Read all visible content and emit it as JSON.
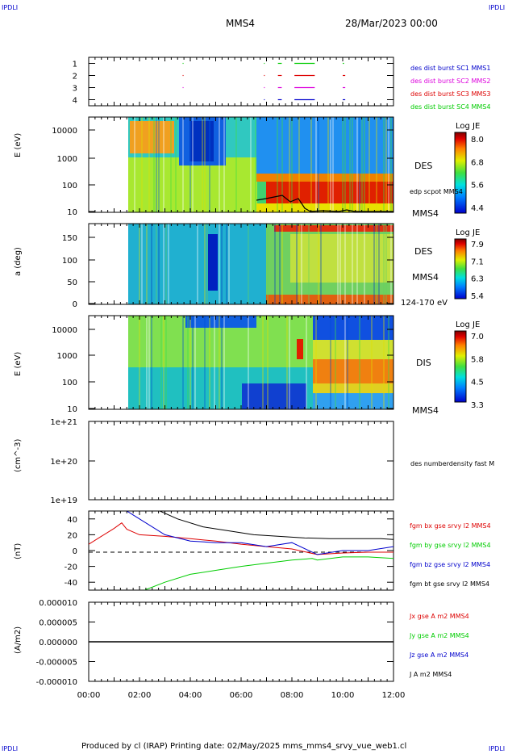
{
  "corners": {
    "left": "IPDLI",
    "right": "IPDLI"
  },
  "header": {
    "spacecraft": "MMS4",
    "date": "28/Mar/2023 00:00"
  },
  "footer": {
    "text": "Produced by cl (IRAP)   Printing date: 02/May/2025   mms_mms4_srvy_vue_web1.cl"
  },
  "colors": {
    "red": "#dd0000",
    "magenta": "#dd00dd",
    "blue": "#0000cc",
    "green": "#00cc00",
    "black": "#000000"
  },
  "chart_data": [
    {
      "type": "scatter",
      "id": "burst",
      "yticks": [
        "1",
        "2",
        "3",
        "4"
      ],
      "ylim": [
        0.5,
        4.5
      ],
      "legend": [
        {
          "label": "des dist burst SC1 MMS1",
          "color": "#0000cc"
        },
        {
          "label": "des dist burst SC2 MMS2",
          "color": "#dd00dd"
        },
        {
          "label": "des dist burst SC3 MMS3",
          "color": "#dd0000"
        },
        {
          "label": "des dist burst SC4 MMS4",
          "color": "#00cc00"
        }
      ],
      "segments": [
        {
          "sc": 4,
          "x": [
            3.7,
            3.72
          ]
        },
        {
          "sc": 4,
          "x": [
            6.9,
            6.92
          ]
        },
        {
          "sc": 4,
          "x": [
            7.45,
            7.6
          ]
        },
        {
          "sc": 4,
          "x": [
            8.1,
            8.9
          ]
        },
        {
          "sc": 4,
          "x": [
            10.0,
            10.05
          ]
        },
        {
          "sc": 3,
          "x": [
            3.7,
            3.72
          ]
        },
        {
          "sc": 3,
          "x": [
            6.9,
            6.92
          ]
        },
        {
          "sc": 3,
          "x": [
            7.45,
            7.6
          ]
        },
        {
          "sc": 3,
          "x": [
            8.1,
            8.9
          ]
        },
        {
          "sc": 3,
          "x": [
            10.0,
            10.1
          ]
        },
        {
          "sc": 2,
          "x": [
            3.7,
            3.72
          ]
        },
        {
          "sc": 2,
          "x": [
            6.9,
            6.92
          ]
        },
        {
          "sc": 2,
          "x": [
            7.45,
            7.6
          ]
        },
        {
          "sc": 2,
          "x": [
            8.1,
            8.9
          ]
        },
        {
          "sc": 2,
          "x": [
            10.0,
            10.1
          ]
        },
        {
          "sc": 1,
          "x": [
            6.9,
            6.92
          ]
        },
        {
          "sc": 1,
          "x": [
            7.45,
            7.6
          ]
        },
        {
          "sc": 1,
          "x": [
            8.1,
            8.9
          ]
        },
        {
          "sc": 1,
          "x": [
            10.0,
            10.1
          ]
        }
      ]
    },
    {
      "type": "heatmap",
      "id": "des_energy",
      "ylabel": "E (eV)",
      "yticks": [
        "10000",
        "1000",
        "100",
        "10"
      ],
      "label": "DES",
      "sc_label": "MMS4",
      "overlay_label": "edp scpot MMS4",
      "colorbar": {
        "title": "Log JE",
        "ticks": [
          "8.0",
          "6.8",
          "5.6",
          "4.4"
        ]
      }
    },
    {
      "type": "heatmap",
      "id": "des_pitch",
      "ylabel": "a (deg)",
      "yticks": [
        "150",
        "100",
        "50",
        "0"
      ],
      "label": "DES",
      "sc_label": "MMS4",
      "energy_label": "124-170 eV",
      "colorbar": {
        "title": "Log JE",
        "ticks": [
          "7.9",
          "7.1",
          "6.3",
          "5.4"
        ]
      }
    },
    {
      "type": "heatmap",
      "id": "dis_energy",
      "ylabel": "E (eV)",
      "yticks": [
        "10000",
        "1000",
        "100",
        "10"
      ],
      "label": "DIS",
      "sc_label": "MMS4",
      "colorbar": {
        "title": "Log JE",
        "ticks": [
          "7.0",
          "5.8",
          "4.5",
          "3.3"
        ]
      }
    },
    {
      "type": "line",
      "id": "density",
      "ylabel": "(cm^-3)",
      "yticks": [
        "1e+21",
        "1e+20",
        "1e+19"
      ],
      "legend": [
        {
          "label": "des numberdensity fast M",
          "color": "#000000"
        }
      ]
    },
    {
      "type": "line",
      "id": "fgm",
      "ylabel": "(nT)",
      "yticks": [
        "40",
        "20",
        "0",
        "-20",
        "-40"
      ],
      "ylim": [
        -50,
        50
      ],
      "legend": [
        {
          "label": "fgm bx gse srvy l2 MMS4",
          "color": "#dd0000"
        },
        {
          "label": "fgm by gse srvy l2 MMS4",
          "color": "#00cc00"
        },
        {
          "label": "fgm bz gse srvy l2 MMS4",
          "color": "#0000cc"
        },
        {
          "label": "fgm bt gse srvy l2 MMS4",
          "color": "#000000"
        }
      ],
      "series": [
        {
          "name": "fgm bx gse srvy l2 MMS4",
          "x": [
            0,
            0.5,
            1.0,
            1.3,
            1.5,
            2.0,
            3.0,
            4.0,
            5.0,
            6.0,
            7.0,
            8.0,
            9.0,
            10.0,
            11.0,
            12.0
          ],
          "values": [
            8,
            18,
            28,
            35,
            27,
            20,
            18,
            15,
            12,
            8,
            5,
            2,
            -5,
            -3,
            -2,
            -2
          ]
        },
        {
          "name": "fgm by gse srvy l2 MMS4",
          "x": [
            2.2,
            3.0,
            4.0,
            5.0,
            6.0,
            7.0,
            8.0,
            8.8,
            9.0,
            10.0,
            11.0,
            12.0
          ],
          "values": [
            -50,
            -40,
            -30,
            -25,
            -20,
            -16,
            -12,
            -10,
            -12,
            -8,
            -8,
            -10
          ]
        },
        {
          "name": "fgm bz gse srvy l2 MMS4",
          "x": [
            1.5,
            2.0,
            3.0,
            4.0,
            5.0,
            6.0,
            7.0,
            8.0,
            9.0,
            10.0,
            11.0,
            12.0
          ],
          "values": [
            50,
            40,
            20,
            12,
            10,
            10,
            5,
            10,
            -5,
            0,
            0,
            5
          ]
        },
        {
          "name": "fgm bt gse srvy l2 MMS4",
          "x": [
            2.8,
            3.5,
            4.5,
            5.5,
            6.5,
            7.5,
            8.5,
            9.5,
            10.5,
            11.5,
            12.0
          ],
          "values": [
            50,
            40,
            30,
            25,
            20,
            18,
            16,
            15,
            15,
            15,
            14
          ]
        }
      ]
    },
    {
      "type": "line",
      "id": "current",
      "ylabel": "(A/m2)",
      "yticks": [
        "0.000010",
        "0.000005",
        "0.000000",
        "-0.000005",
        "-0.000010"
      ],
      "ylim": [
        -1e-05,
        1e-05
      ],
      "legend": [
        {
          "label": "Jx gse A m2 MMS4",
          "color": "#dd0000"
        },
        {
          "label": "Jy gse A m2 MMS4",
          "color": "#00cc00"
        },
        {
          "label": "Jz gse A m2 MMS4",
          "color": "#0000cc"
        },
        {
          "label": "J A m2 MMS4",
          "color": "#000000"
        }
      ],
      "series": [
        {
          "name": "J A m2 MMS4",
          "x": [
            0,
            12
          ],
          "values": [
            0,
            0
          ]
        }
      ]
    }
  ],
  "xaxis": {
    "ticks": [
      "00:00",
      "02:00",
      "04:00",
      "06:00",
      "08:00",
      "10:00",
      "12:00"
    ],
    "xlim": [
      0,
      12
    ]
  }
}
